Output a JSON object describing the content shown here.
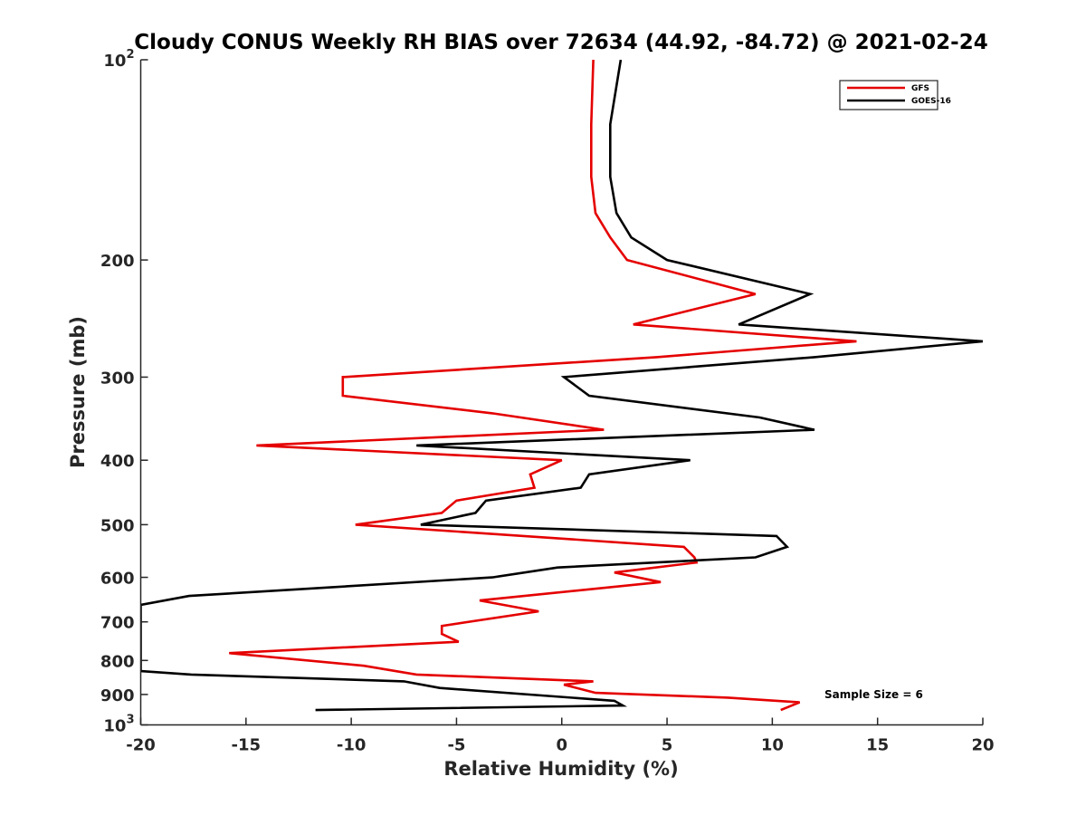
{
  "chart_data": {
    "type": "line",
    "title": "Cloudy CONUS Weekly RH BIAS over 72634 (44.92, -84.72) @ 2021-02-24",
    "xlabel": "Relative Humidity (%)",
    "ylabel": "Pressure (mb)",
    "xlim": [
      -20,
      20
    ],
    "ylim": [
      100,
      1000
    ],
    "y_scale": "log",
    "y_reversed": true,
    "grid": false,
    "legend_position": "top-right",
    "x_ticks": [
      "-20",
      "-15",
      "-10",
      "-5",
      "0",
      "5",
      "10",
      "15",
      "20"
    ],
    "y_ticks": [
      {
        "value": 100,
        "base": "10",
        "exp": "2"
      },
      {
        "value": 200,
        "label": "200"
      },
      {
        "value": 300,
        "label": "300"
      },
      {
        "value": 400,
        "label": "400"
      },
      {
        "value": 500,
        "label": "500"
      },
      {
        "value": 600,
        "label": "600"
      },
      {
        "value": 700,
        "label": "700"
      },
      {
        "value": 800,
        "label": "800"
      },
      {
        "value": 900,
        "label": "900"
      },
      {
        "value": 1000,
        "base": "10",
        "exp": "3"
      }
    ],
    "series": [
      {
        "name": "GFS",
        "color": "#e50000",
        "points": [
          [
            1.5,
            100
          ],
          [
            1.4,
            125
          ],
          [
            1.4,
            150
          ],
          [
            1.6,
            170
          ],
          [
            2.3,
            185
          ],
          [
            3.1,
            200
          ],
          [
            9.2,
            225
          ],
          [
            3.4,
            250
          ],
          [
            14.0,
            265
          ],
          [
            4.5,
            280
          ],
          [
            -10.4,
            300
          ],
          [
            -10.4,
            320
          ],
          [
            -3.3,
            340
          ],
          [
            2.0,
            360
          ],
          [
            -14.5,
            380
          ],
          [
            0.0,
            400
          ],
          [
            -1.5,
            420
          ],
          [
            -1.3,
            440
          ],
          [
            -5.0,
            460
          ],
          [
            -5.7,
            480
          ],
          [
            -9.8,
            500
          ],
          [
            5.8,
            540
          ],
          [
            6.3,
            560
          ],
          [
            6.4,
            570
          ],
          [
            2.5,
            590
          ],
          [
            4.7,
            610
          ],
          [
            -3.9,
            650
          ],
          [
            -1.1,
            675
          ],
          [
            -5.7,
            710
          ],
          [
            -5.7,
            730
          ],
          [
            -4.9,
            750
          ],
          [
            -15.8,
            780
          ],
          [
            -9.4,
            815
          ],
          [
            -6.9,
            840
          ],
          [
            1.5,
            860
          ],
          [
            0.1,
            870
          ],
          [
            1.6,
            895
          ],
          [
            7.9,
            910
          ],
          [
            11.3,
            925
          ],
          [
            10.4,
            950
          ]
        ]
      },
      {
        "name": "GOES-16",
        "color": "#000000",
        "points": [
          [
            2.8,
            100
          ],
          [
            2.3,
            125
          ],
          [
            2.3,
            150
          ],
          [
            2.6,
            170
          ],
          [
            3.3,
            185
          ],
          [
            5.0,
            200
          ],
          [
            11.8,
            225
          ],
          [
            8.4,
            250
          ],
          [
            20.0,
            265
          ],
          [
            12.0,
            280
          ],
          [
            0.1,
            300
          ],
          [
            1.3,
            320
          ],
          [
            9.4,
            345
          ],
          [
            12.0,
            360
          ],
          [
            -6.9,
            380
          ],
          [
            6.1,
            400
          ],
          [
            1.3,
            420
          ],
          [
            0.9,
            440
          ],
          [
            -3.6,
            460
          ],
          [
            -4.1,
            480
          ],
          [
            -6.7,
            500
          ],
          [
            10.2,
            520
          ],
          [
            10.7,
            540
          ],
          [
            9.2,
            560
          ],
          [
            -0.2,
            580
          ],
          [
            -3.3,
            600
          ],
          [
            -17.7,
            640
          ],
          [
            -20.0,
            660
          ],
          [
            -20.0,
            830
          ],
          [
            -17.6,
            840
          ],
          [
            -7.5,
            860
          ],
          [
            -5.8,
            880
          ],
          [
            2.5,
            920
          ],
          [
            2.9,
            935
          ],
          [
            -11.7,
            950
          ]
        ]
      }
    ],
    "annotation": "Sample Size = 6"
  }
}
